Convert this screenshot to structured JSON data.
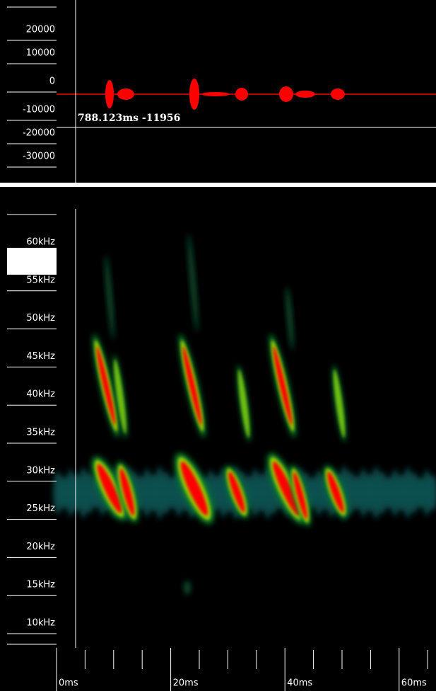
{
  "waveform": {
    "y_labels": [
      "20000",
      "10000",
      "0",
      "-10000",
      "-20000",
      "-30000"
    ],
    "cursor_readout": "788.123ms -11956"
  },
  "spectrogram": {
    "freq_labels": [
      "60kHz",
      "55kHz",
      "50kHz",
      "45kHz",
      "40kHz",
      "35kHz",
      "30kHz",
      "25kHz",
      "20kHz",
      "15kHz",
      "10kHz"
    ],
    "time_labels": [
      "0ms",
      "20ms",
      "40ms",
      "60ms"
    ]
  }
}
